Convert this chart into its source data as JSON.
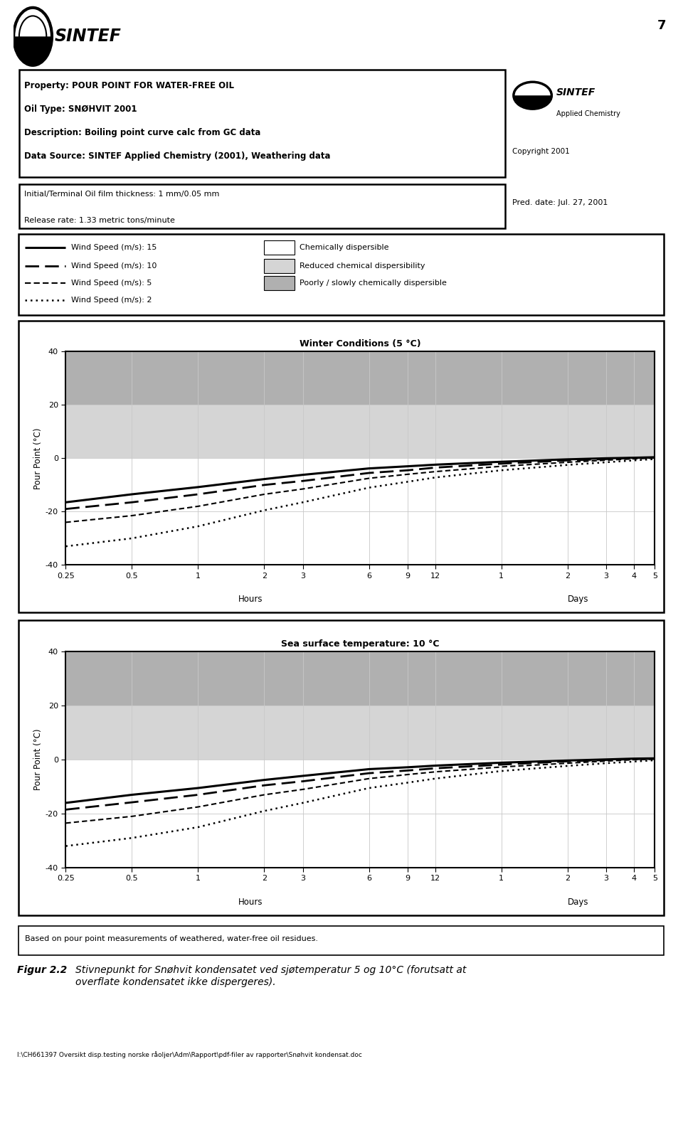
{
  "page_number": "7",
  "title_box": {
    "property": "Property: POUR POINT FOR WATER-FREE OIL",
    "oil_type": "Oil Type: SNØHVIT 2001",
    "description": "Description: Boiling point curve calc from GC data",
    "data_source": "Data Source: SINTEF Applied Chemistry (2001), Weathering data"
  },
  "info_box": {
    "line1": "Initial/Terminal Oil film thickness: 1 mm/0.05 mm",
    "line2": "Release rate: 1.33 metric tons/minute",
    "pred_date": "Pred. date: Jul. 27, 2001"
  },
  "chart1": {
    "title": "Winter Conditions (5 °C)",
    "ylabel": "Pour Point (°C)",
    "ylim": [
      -40,
      40
    ],
    "yticks": [
      -40,
      -20,
      0,
      20,
      40
    ],
    "band_poorly": [
      20,
      40
    ],
    "band_reduced": [
      0,
      20
    ],
    "band_chem": [
      -40,
      0
    ],
    "x_values": [
      0.25,
      0.5,
      1,
      2,
      3,
      6,
      9,
      12,
      24,
      48,
      72,
      96,
      120
    ],
    "curves": {
      "ws15": [
        -16.5,
        -13.5,
        -10.8,
        -7.8,
        -6.2,
        -3.8,
        -3.0,
        -2.4,
        -1.3,
        -0.4,
        0.0,
        0.2,
        0.4
      ],
      "ws10": [
        -19.0,
        -16.5,
        -13.5,
        -10.0,
        -8.5,
        -5.5,
        -4.5,
        -3.5,
        -2.0,
        -0.8,
        -0.3,
        0.1,
        0.3
      ],
      "ws5": [
        -24.0,
        -21.5,
        -18.0,
        -13.5,
        -11.5,
        -7.5,
        -6.0,
        -5.0,
        -3.0,
        -1.5,
        -0.7,
        -0.2,
        0.1
      ],
      "ws2": [
        -33.0,
        -30.0,
        -25.5,
        -19.5,
        -16.5,
        -11.0,
        -8.8,
        -7.2,
        -4.5,
        -2.5,
        -1.5,
        -0.8,
        -0.3
      ]
    }
  },
  "chart2": {
    "title": "Sea surface temperature: 10 °C",
    "ylabel": "Pour Point (°C)",
    "ylim": [
      -40,
      40
    ],
    "yticks": [
      -40,
      -20,
      0,
      20,
      40
    ],
    "band_poorly": [
      20,
      40
    ],
    "band_reduced": [
      0,
      20
    ],
    "band_chem": [
      -40,
      0
    ],
    "x_values": [
      0.25,
      0.5,
      1,
      2,
      3,
      6,
      9,
      12,
      24,
      48,
      72,
      96,
      120
    ],
    "curves": {
      "ws15": [
        -16.0,
        -13.0,
        -10.5,
        -7.5,
        -6.0,
        -3.5,
        -2.8,
        -2.2,
        -1.1,
        -0.3,
        0.1,
        0.4,
        0.5
      ],
      "ws10": [
        -18.5,
        -15.8,
        -13.0,
        -9.5,
        -8.0,
        -5.0,
        -4.0,
        -3.2,
        -1.8,
        -0.6,
        -0.1,
        0.2,
        0.4
      ],
      "ws5": [
        -23.5,
        -21.0,
        -17.5,
        -13.0,
        -11.0,
        -7.0,
        -5.5,
        -4.5,
        -2.7,
        -1.3,
        -0.5,
        0.0,
        0.2
      ],
      "ws2": [
        -32.0,
        -29.0,
        -25.0,
        -19.0,
        -16.0,
        -10.5,
        -8.5,
        -7.0,
        -4.2,
        -2.3,
        -1.3,
        -0.7,
        -0.2
      ]
    }
  },
  "x_tick_labels": [
    "0.25",
    "0.5",
    "1",
    "2",
    "3",
    "6",
    "9",
    "12",
    "1",
    "2",
    "3",
    "4",
    "5"
  ],
  "hours_label": "Hours",
  "days_label": "Days",
  "dispersibility_labels": [
    "Chemically dispersible",
    "Reduced chemical dispersibility",
    "Poorly / slowly chemically dispersible"
  ],
  "wind_speed_labels": [
    "Wind Speed (m/s): 15",
    "Wind Speed (m/s): 10",
    "Wind Speed (m/s): 5",
    "Wind Speed (m/s): 2"
  ],
  "footer_note": "Based on pour point measurements of weathered, water-free oil residues.",
  "figure_caption_left": "Figur 2.2",
  "figure_caption_right": "Stivnepunkt for Snøhvit kondensatet ved sjøtemperatur 5 og 10°C (forutsatt at\noverflate kondensatet ikke dispergeres).",
  "file_path": "I:\\CH661397 Oversikt disp.testing norske råoljer\\Adm\\Rapport\\pdf-filer av rapporter\\Snøhvit kondensat.doc",
  "colors": {
    "band_poorly": "#b0b0b0",
    "band_reduced": "#d5d5d5",
    "band_chem": "#ffffff",
    "line_color": "#000000",
    "grid_color": "#c8c8c8",
    "border_color": "#000000",
    "background": "#ffffff"
  }
}
